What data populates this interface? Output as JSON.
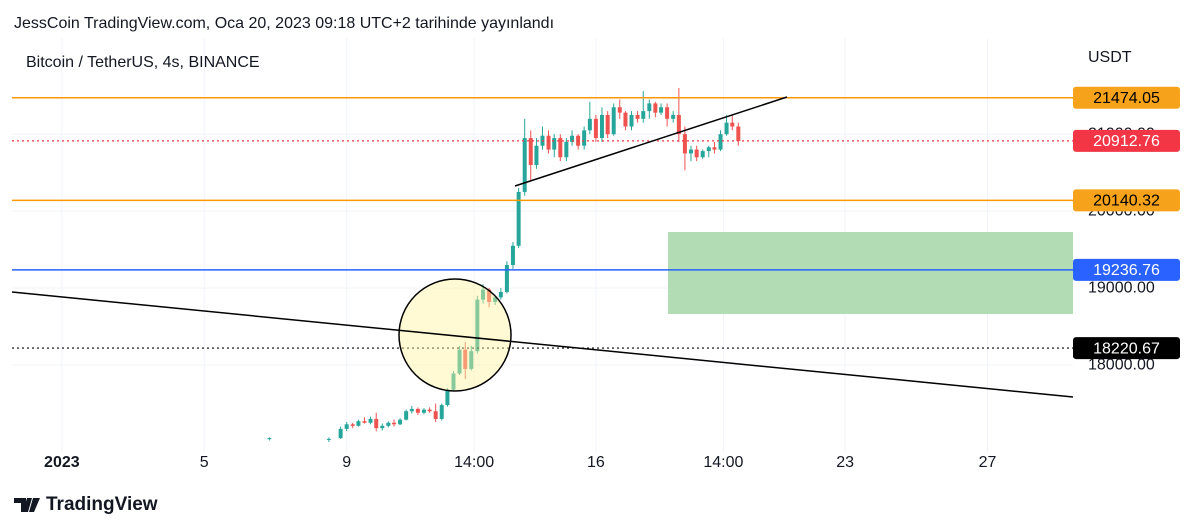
{
  "chart_data": {
    "type": "candlestick",
    "title": "JessCoin TradingView.com, Oca 20, 2023 09:18 UTC+2 tarihinde yayınlandı",
    "subtitle": "Bitcoin / TetherUS, 4s, BINANCE",
    "y_axis_label": "USDT",
    "up_color": "#26a69a",
    "down_color": "#ef5350",
    "grid": true,
    "xlim": [
      -0.4,
      29.4
    ],
    "xticks": [
      {
        "value": 1,
        "label": "2023"
      },
      5,
      9,
      {
        "value": 12.58,
        "label": "14:00"
      },
      16,
      {
        "value": 19.58,
        "label": "14:00"
      },
      23,
      27
    ],
    "ylim": [
      16870,
      22250
    ],
    "yticks": [
      {
        "value": 18000,
        "label": "18000.00"
      },
      {
        "value": 19000,
        "label": "19000.00"
      },
      {
        "value": 20000,
        "label": "20000.00"
      },
      {
        "value": 21000,
        "label": "21000.00"
      }
    ],
    "x": [
      6.83,
      8.5,
      8.83,
      9,
      9.17,
      9.33,
      9.5,
      9.67,
      9.83,
      10,
      10.17,
      10.33,
      10.5,
      10.67,
      10.83,
      11,
      11.17,
      11.33,
      11.5,
      11.67,
      11.83,
      12,
      12.17,
      12.33,
      12.5,
      12.67,
      12.83,
      13,
      13.17,
      13.33,
      13.5,
      13.67,
      13.83,
      14,
      14.17,
      14.33,
      14.5,
      14.67,
      14.83,
      15,
      15.17,
      15.33,
      15.5,
      15.67,
      15.83,
      16,
      16.17,
      16.33,
      16.5,
      16.67,
      16.83,
      17,
      17.17,
      17.33,
      17.5,
      17.67,
      17.83,
      18,
      18.17,
      18.33,
      18.5,
      18.67,
      18.83,
      19,
      19.17,
      19.33,
      19.5,
      19.67,
      19.83,
      20
    ],
    "open": [
      17040,
      17030,
      17050,
      17170,
      17230,
      17210,
      17270,
      17250,
      17300,
      17180,
      17210,
      17250,
      17230,
      17290,
      17400,
      17430,
      17380,
      17420,
      17400,
      17300,
      17480,
      17680,
      17890,
      18200,
      17950,
      18180,
      18850,
      18980,
      18820,
      18880,
      18950,
      19300,
      19550,
      20250,
      20950,
      20600,
      20850,
      20980,
      20800,
      20950,
      20700,
      20900,
      20980,
      20850,
      21050,
      21200,
      20950,
      21250,
      21000,
      21350,
      21280,
      21100,
      21250,
      21200,
      21300,
      21400,
      21280,
      21350,
      21200,
      21250,
      21000,
      20750,
      20800,
      20700,
      20780,
      20830,
      20800,
      21000,
      21150,
      21100
    ],
    "high": [
      17060,
      17060,
      17200,
      17260,
      17250,
      17290,
      17320,
      17330,
      17380,
      17240,
      17270,
      17290,
      17310,
      17420,
      17470,
      17450,
      17440,
      17450,
      17500,
      17500,
      17700,
      17920,
      18250,
      18300,
      18250,
      18900,
      19050,
      19000,
      18900,
      19000,
      19350,
      19600,
      20300,
      21200,
      21050,
      20950,
      21100,
      21050,
      21000,
      21000,
      20950,
      21050,
      21000,
      21100,
      21420,
      21250,
      21350,
      21300,
      21400,
      21450,
      21300,
      21300,
      21300,
      21560,
      21450,
      21420,
      21400,
      21400,
      21300,
      21600,
      21100,
      20850,
      20850,
      20800,
      20850,
      20900,
      21050,
      21250,
      21250,
      21150
    ],
    "low": [
      17020,
      17000,
      17040,
      17140,
      17180,
      17200,
      17240,
      17230,
      17140,
      17150,
      17190,
      17200,
      17220,
      17280,
      17370,
      17350,
      17360,
      17380,
      17260,
      17280,
      17460,
      17660,
      17870,
      17820,
      17930,
      18150,
      18800,
      18750,
      18780,
      18850,
      18930,
      19250,
      19520,
      20200,
      20400,
      20550,
      20800,
      20750,
      20700,
      20650,
      20650,
      20850,
      20800,
      20800,
      21000,
      20900,
      20900,
      20950,
      20980,
      21200,
      21050,
      21050,
      21150,
      21150,
      21200,
      21220,
      21250,
      21100,
      21150,
      20900,
      20530,
      20650,
      20650,
      20680,
      20700,
      20750,
      20780,
      20980,
      21050,
      20850
    ],
    "close": [
      17050,
      17040,
      17170,
      17230,
      17210,
      17270,
      17250,
      17300,
      17180,
      17210,
      17250,
      17230,
      17290,
      17400,
      17430,
      17380,
      17420,
      17400,
      17300,
      17480,
      17680,
      17890,
      18200,
      17950,
      18180,
      18850,
      18980,
      18820,
      18880,
      18950,
      19300,
      19550,
      20250,
      20950,
      20600,
      20850,
      20980,
      20800,
      20950,
      20700,
      20900,
      20980,
      20850,
      21050,
      21200,
      20950,
      21250,
      21000,
      21350,
      21280,
      21100,
      21250,
      21200,
      21300,
      21400,
      21280,
      21350,
      21200,
      21250,
      21000,
      20750,
      20800,
      20700,
      20780,
      20830,
      20800,
      21000,
      21150,
      21100,
      20912.76
    ],
    "price_lines": [
      {
        "value": 21474.05,
        "color": "#ff9800",
        "label_color": "#f7a21b",
        "text_color": "#000000",
        "style": "solid"
      },
      {
        "value": 20912.76,
        "color": "#f23645",
        "label_color": "#f23645",
        "text_color": "#ffffff",
        "style": "dotted"
      },
      {
        "value": 20140.32,
        "color": "#ff9800",
        "label_color": "#f7a21b",
        "text_color": "#000000",
        "style": "solid"
      },
      {
        "value": 19236.76,
        "color": "#2962ff",
        "label_color": "#2962ff",
        "text_color": "#ffffff",
        "style": "solid"
      },
      {
        "value": 18220.67,
        "color": "#000000",
        "label_color": "#000000",
        "text_color": "#ffffff",
        "style": "dotted"
      }
    ]
  },
  "footer": {
    "brand": "TradingView"
  }
}
